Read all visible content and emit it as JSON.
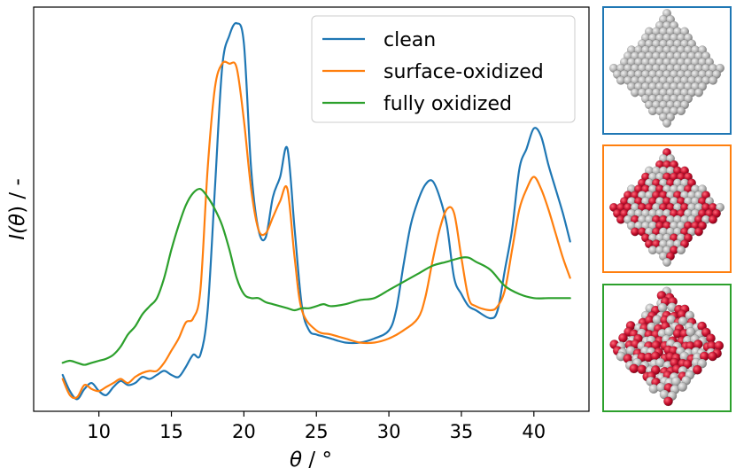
{
  "chart_data": {
    "type": "line",
    "xlabel_symbol": "θ",
    "xlabel_unit": " / °",
    "ylabel_prefix": "I(",
    "ylabel_symbol": "θ",
    "ylabel_suffix": ") / -",
    "xlim": [
      5.5,
      43.8
    ],
    "ylim": [
      0,
      1
    ],
    "xticks": [
      10,
      15,
      20,
      25,
      30,
      35,
      40
    ],
    "yticks_visible": false,
    "legend": "top-right",
    "series": [
      {
        "name": "clean",
        "color": "#1f77b4",
        "x": [
          7.5,
          8.0,
          8.5,
          9.0,
          9.5,
          10.0,
          10.5,
          11.0,
          11.5,
          12.0,
          12.5,
          13.0,
          13.5,
          14.0,
          14.5,
          15.0,
          15.5,
          16.0,
          16.5,
          17.0,
          17.5,
          18.0,
          18.5,
          19.0,
          19.5,
          20.0,
          20.5,
          21.0,
          21.5,
          22.0,
          22.5,
          23.0,
          23.5,
          24.0,
          24.5,
          25.0,
          25.5,
          26.0,
          27.0,
          28.0,
          29.0,
          30.0,
          30.5,
          31.0,
          31.5,
          32.0,
          32.5,
          33.0,
          33.5,
          34.0,
          34.5,
          35.0,
          35.5,
          36.0,
          37.0,
          37.5,
          38.0,
          38.5,
          39.0,
          39.5,
          40.0,
          40.5,
          41.0,
          41.5,
          42.0,
          42.5
        ],
        "y": [
          0.09,
          0.05,
          0.03,
          0.055,
          0.07,
          0.05,
          0.04,
          0.06,
          0.075,
          0.065,
          0.07,
          0.085,
          0.08,
          0.09,
          0.1,
          0.09,
          0.085,
          0.11,
          0.14,
          0.14,
          0.25,
          0.55,
          0.85,
          0.93,
          0.96,
          0.91,
          0.6,
          0.45,
          0.43,
          0.53,
          0.58,
          0.65,
          0.45,
          0.26,
          0.2,
          0.19,
          0.185,
          0.18,
          0.17,
          0.17,
          0.18,
          0.2,
          0.25,
          0.36,
          0.46,
          0.52,
          0.56,
          0.57,
          0.53,
          0.46,
          0.33,
          0.29,
          0.26,
          0.25,
          0.23,
          0.25,
          0.35,
          0.45,
          0.6,
          0.65,
          0.7,
          0.68,
          0.61,
          0.55,
          0.49,
          0.42
        ]
      },
      {
        "name": "surface-oxidized",
        "color": "#ff7f0e",
        "x": [
          7.5,
          8.0,
          8.5,
          9.0,
          9.5,
          10.0,
          10.5,
          11.0,
          11.5,
          12.0,
          12.5,
          13.0,
          13.5,
          14.0,
          14.5,
          15.0,
          15.5,
          16.0,
          16.5,
          17.0,
          17.5,
          18.0,
          18.5,
          19.0,
          19.5,
          20.0,
          20.5,
          21.0,
          21.5,
          22.0,
          22.5,
          23.0,
          23.5,
          24.0,
          25.0,
          26.0,
          27.0,
          28.0,
          29.0,
          30.0,
          31.0,
          32.0,
          32.5,
          33.0,
          33.5,
          34.0,
          34.5,
          35.0,
          35.5,
          36.0,
          37.0,
          37.5,
          38.0,
          38.5,
          39.0,
          39.5,
          40.0,
          40.5,
          41.0,
          41.5,
          42.0,
          42.5
        ],
        "y": [
          0.08,
          0.04,
          0.035,
          0.065,
          0.055,
          0.05,
          0.06,
          0.07,
          0.08,
          0.07,
          0.085,
          0.095,
          0.1,
          0.1,
          0.12,
          0.15,
          0.18,
          0.22,
          0.23,
          0.3,
          0.6,
          0.8,
          0.86,
          0.86,
          0.85,
          0.72,
          0.55,
          0.45,
          0.44,
          0.48,
          0.52,
          0.55,
          0.38,
          0.25,
          0.2,
          0.19,
          0.18,
          0.17,
          0.17,
          0.18,
          0.2,
          0.23,
          0.28,
          0.37,
          0.45,
          0.5,
          0.49,
          0.38,
          0.28,
          0.26,
          0.25,
          0.26,
          0.3,
          0.4,
          0.5,
          0.55,
          0.58,
          0.55,
          0.5,
          0.44,
          0.38,
          0.33
        ]
      },
      {
        "name": "fully oxidized",
        "color": "#2ca02c",
        "x": [
          7.5,
          8.0,
          8.5,
          9.0,
          9.5,
          10.0,
          10.5,
          11.0,
          11.5,
          12.0,
          12.5,
          13.0,
          13.5,
          14.0,
          14.5,
          15.0,
          15.5,
          16.0,
          16.5,
          17.0,
          17.5,
          18.0,
          18.5,
          19.0,
          19.5,
          20.0,
          20.5,
          21.0,
          21.5,
          22.0,
          22.5,
          23.0,
          23.5,
          24.0,
          24.5,
          25.0,
          25.5,
          26.0,
          27.0,
          28.0,
          29.0,
          30.0,
          31.0,
          32.0,
          33.0,
          34.0,
          35.0,
          35.5,
          36.0,
          37.0,
          38.0,
          39.0,
          40.0,
          41.0,
          42.0,
          42.5
        ],
        "y": [
          0.12,
          0.125,
          0.12,
          0.115,
          0.12,
          0.125,
          0.13,
          0.14,
          0.16,
          0.19,
          0.21,
          0.24,
          0.26,
          0.28,
          0.33,
          0.4,
          0.46,
          0.51,
          0.54,
          0.55,
          0.53,
          0.5,
          0.46,
          0.4,
          0.33,
          0.29,
          0.28,
          0.28,
          0.27,
          0.265,
          0.26,
          0.255,
          0.25,
          0.255,
          0.255,
          0.26,
          0.265,
          0.26,
          0.265,
          0.275,
          0.28,
          0.3,
          0.32,
          0.34,
          0.36,
          0.37,
          0.38,
          0.38,
          0.37,
          0.35,
          0.31,
          0.29,
          0.28,
          0.28,
          0.28,
          0.28
        ]
      }
    ]
  },
  "insets": [
    {
      "frame_color": "#1f77b4",
      "depicts": "clean-nanoparticle"
    },
    {
      "frame_color": "#ff7f0e",
      "depicts": "surface-oxidized-nanoparticle"
    },
    {
      "frame_color": "#2ca02c",
      "depicts": "fully-oxidized-nanoparticle"
    }
  ]
}
